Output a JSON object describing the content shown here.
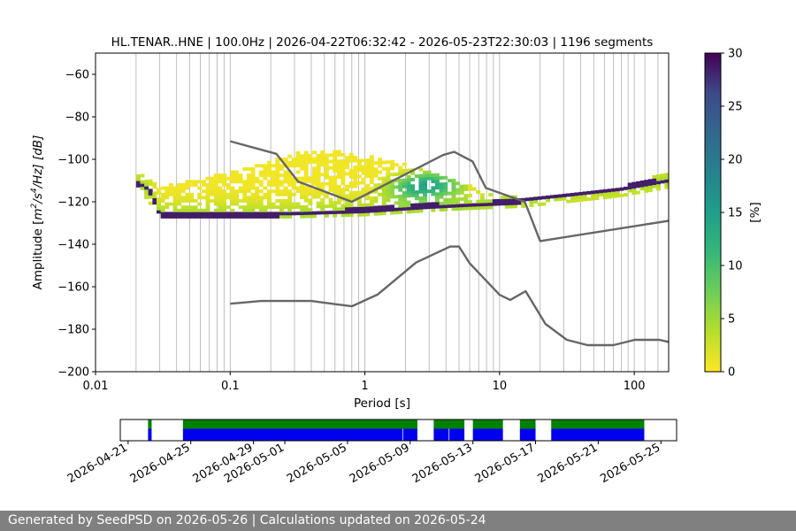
{
  "chart_data": [
    {
      "type": "heatmap",
      "title": "HL.TENAR..HNE | 100.0Hz | 2026-04-22T06:32:42 - 2026-05-23T22:30:03 | 1196 segments",
      "xlabel": "Period [s]",
      "ylabel": "Amplitude [m²/s⁴/Hz] [dB]",
      "ylabel_parts": {
        "prefix": "Amplitude [",
        "unit": "m",
        "sup1": "2",
        "mid": "/s",
        "sup2": "4",
        "suffix": "/Hz] [dB]"
      },
      "x_scale": "log",
      "xlim": [
        0.01,
        180
      ],
      "ylim": [
        -200,
        -50
      ],
      "x_ticks": [
        0.01,
        0.1,
        1,
        10,
        100
      ],
      "x_tick_labels": [
        "0.01",
        "0.1",
        "1",
        "10",
        "100"
      ],
      "y_ticks": [
        -200,
        -180,
        -160,
        -140,
        -120,
        -100,
        -80,
        -60
      ],
      "y_tick_labels": [
        "−200",
        "−180",
        "−160",
        "−140",
        "−120",
        "−100",
        "−80",
        "−60"
      ],
      "grid_periods": [
        0.02,
        0.03,
        0.04,
        0.05,
        0.06,
        0.07,
        0.08,
        0.09,
        0.1,
        0.2,
        0.3,
        0.4,
        0.5,
        0.6,
        0.7,
        0.8,
        0.9,
        1,
        2,
        3,
        4,
        5,
        6,
        7,
        8,
        9,
        10,
        20,
        30,
        40,
        50,
        60,
        70,
        80,
        90,
        100,
        120,
        150
      ],
      "colorbar": {
        "label": "[%]",
        "range": [
          0,
          30
        ],
        "ticks": [
          0,
          5,
          10,
          15,
          20,
          25,
          30
        ],
        "tick_labels": [
          "0",
          "5",
          "10",
          "15",
          "20",
          "25",
          "30"
        ]
      },
      "psd_mode_line": [
        [
          0.02,
          -111
        ],
        [
          0.025,
          -114
        ],
        [
          0.03,
          -126
        ],
        [
          0.05,
          -126
        ],
        [
          0.1,
          -126
        ],
        [
          0.2,
          -126
        ],
        [
          0.5,
          -125
        ],
        [
          1,
          -124
        ],
        [
          2,
          -123
        ],
        [
          3,
          -122
        ],
        [
          5,
          -122
        ],
        [
          8,
          -121
        ],
        [
          12,
          -120
        ],
        [
          20,
          -118
        ],
        [
          40,
          -115
        ],
        [
          80,
          -113
        ],
        [
          180,
          -110
        ]
      ],
      "psd_spread_upper": [
        [
          0.02,
          -105
        ],
        [
          0.03,
          -113
        ],
        [
          0.05,
          -110
        ],
        [
          0.1,
          -106
        ],
        [
          0.3,
          -97
        ],
        [
          0.5,
          -95
        ],
        [
          1,
          -98
        ],
        [
          2,
          -102
        ],
        [
          3,
          -106
        ],
        [
          5,
          -110
        ],
        [
          8,
          -116
        ],
        [
          15,
          -118
        ],
        [
          30,
          -117
        ],
        [
          80,
          -113
        ],
        [
          180,
          -106
        ]
      ],
      "psd_spread_lower": [
        [
          0.02,
          -111
        ],
        [
          0.03,
          -127
        ],
        [
          0.1,
          -127
        ],
        [
          0.3,
          -127
        ],
        [
          1,
          -126
        ],
        [
          3,
          -124
        ],
        [
          6,
          -123
        ],
        [
          15,
          -122
        ],
        [
          30,
          -120
        ],
        [
          80,
          -117
        ],
        [
          180,
          -113
        ]
      ],
      "high_noise_model": [
        [
          0.1,
          -91.5
        ],
        [
          0.22,
          -97.4
        ],
        [
          0.32,
          -110.5
        ],
        [
          0.8,
          -120
        ],
        [
          3.8,
          -98
        ],
        [
          4.6,
          -96.5
        ],
        [
          6.3,
          -101
        ],
        [
          7.9,
          -113.5
        ],
        [
          15.4,
          -120
        ],
        [
          20,
          -138.5
        ],
        [
          354.8,
          -126
        ]
      ],
      "low_noise_model": [
        [
          0.1,
          -168
        ],
        [
          0.17,
          -166.7
        ],
        [
          0.4,
          -166.7
        ],
        [
          0.8,
          -169.2
        ],
        [
          1.24,
          -163.7
        ],
        [
          2.4,
          -148.6
        ],
        [
          4.3,
          -141.1
        ],
        [
          5,
          -141.1
        ],
        [
          6,
          -149
        ],
        [
          10,
          -163.8
        ],
        [
          12,
          -166.2
        ],
        [
          15.6,
          -162.1
        ],
        [
          21.9,
          -177.5
        ],
        [
          31.6,
          -185
        ],
        [
          45,
          -187.5
        ],
        [
          70,
          -187.5
        ],
        [
          101,
          -185
        ],
        [
          154,
          -185
        ],
        [
          180,
          -186
        ]
      ]
    },
    {
      "type": "timeline",
      "xlim": [
        "2026-04-20T12:00",
        "2026-05-26T00:00"
      ],
      "x_ticks": [
        "2026-04-21",
        "2026-04-25",
        "2026-04-29",
        "2026-05-01",
        "2026-05-05",
        "2026-05-09",
        "2026-05-13",
        "2026-05-17",
        "2026-05-21",
        "2026-05-25"
      ],
      "colors": {
        "available": "#008000",
        "processed": "#0000ee"
      },
      "available_segments": [
        [
          "2026-04-22T06:32",
          "2026-04-22T12:00"
        ],
        [
          "2026-04-24T12:00",
          "2026-05-09T11:00"
        ],
        [
          "2026-05-10T12:00",
          "2026-05-12T11:00"
        ],
        [
          "2026-05-13T00:00",
          "2026-05-14T22:00"
        ],
        [
          "2026-05-16T00:00",
          "2026-05-17T00:00"
        ],
        [
          "2026-05-18T00:00",
          "2026-05-23T22:30"
        ]
      ],
      "processed_segments": [
        [
          "2026-04-22T06:32",
          "2026-04-22T12:00"
        ],
        [
          "2026-04-24T12:00",
          "2026-05-08T12:00"
        ],
        [
          "2026-05-08T13:00",
          "2026-05-09T11:00"
        ],
        [
          "2026-05-10T12:00",
          "2026-05-11T11:00"
        ],
        [
          "2026-05-11T12:00",
          "2026-05-12T11:00"
        ],
        [
          "2026-05-13T00:00",
          "2026-05-14T22:00"
        ],
        [
          "2026-05-16T00:00",
          "2026-05-17T00:00"
        ],
        [
          "2026-05-18T00:00",
          "2026-05-23T22:30"
        ]
      ]
    }
  ],
  "footer": {
    "text": "Generated by SeedPSD on 2026-05-26 | Calculations updated on 2026-05-24"
  }
}
